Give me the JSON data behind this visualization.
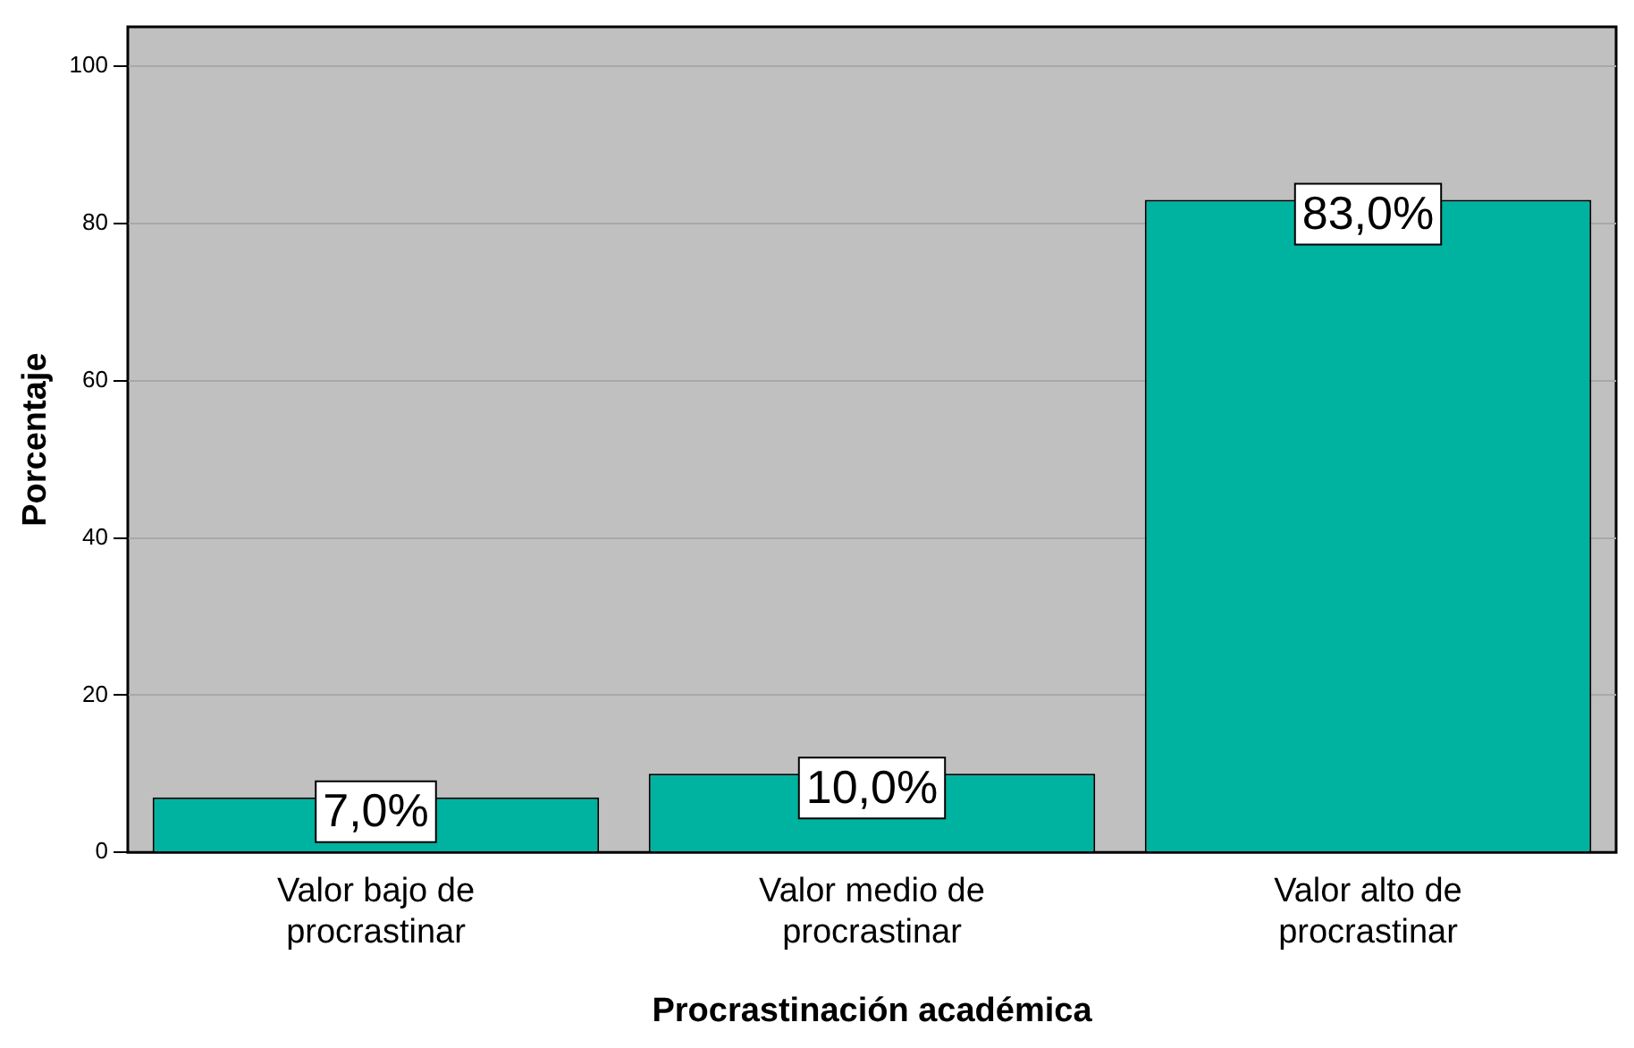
{
  "chart_data": {
    "type": "bar",
    "xlabel": "Procrastinación académica",
    "ylabel": "Porcentaje",
    "categories": [
      "Valor bajo de procrastinar",
      "Valor medio de procrastinar",
      "Valor alto de procrastinar"
    ],
    "values": [
      7.0,
      10.0,
      83.0
    ],
    "value_labels": [
      "7,0%",
      "10,0%",
      "83,0%"
    ],
    "color": "#00b2a0",
    "ylim": [
      0,
      105
    ],
    "yticks": [
      0,
      20,
      40,
      60,
      80,
      100
    ],
    "grid": "y",
    "legend": false
  }
}
